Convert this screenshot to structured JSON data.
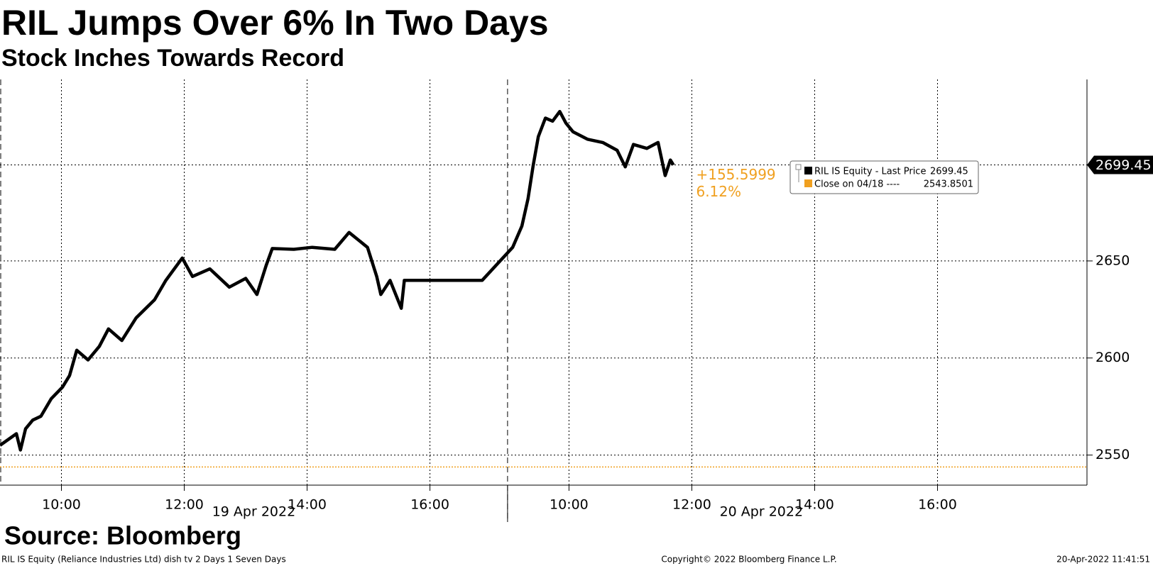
{
  "chart_data": {
    "type": "line",
    "title": "RIL Jumps Over 6% In Two Days",
    "subtitle": "Stock Inches Towards Record",
    "source": "Source: Bloomberg",
    "footer": [
      "RIL IS Equity (Reliance Industries Ltd) dish tv 2 Days 1 Seven Days",
      "Copyright© 2022 Bloomberg Finance L.P.",
      "20-Apr-2022 11:41:51"
    ],
    "x_groups": [
      "19 Apr 2022",
      "20 Apr 2022"
    ],
    "x": [
      "19 Apr 2022 09:00",
      "19 Apr 2022 09:16",
      "19 Apr 2022 09:20",
      "19 Apr 2022 09:25",
      "19 Apr 2022 09:32",
      "19 Apr 2022 09:40",
      "19 Apr 2022 09:50",
      "19 Apr 2022 10:01",
      "19 Apr 2022 10:08",
      "19 Apr 2022 10:15",
      "19 Apr 2022 10:26",
      "19 Apr 2022 10:37",
      "19 Apr 2022 10:46",
      "19 Apr 2022 10:59",
      "19 Apr 2022 11:13",
      "19 Apr 2022 11:31",
      "19 Apr 2022 11:42",
      "19 Apr 2022 11:58",
      "19 Apr 2022 12:08",
      "19 Apr 2022 12:25",
      "19 Apr 2022 12:44",
      "19 Apr 2022 13:00",
      "19 Apr 2022 13:11",
      "19 Apr 2022 13:20",
      "19 Apr 2022 13:26",
      "19 Apr 2022 13:47",
      "19 Apr 2022 14:05",
      "19 Apr 2022 14:27",
      "19 Apr 2022 14:41",
      "19 Apr 2022 14:59",
      "19 Apr 2022 15:08",
      "19 Apr 2022 15:12",
      "19 Apr 2022 15:21",
      "19 Apr 2022 15:32",
      "19 Apr 2022 15:35",
      "19 Apr 2022 16:51",
      "20 Apr 2022 09:05",
      "20 Apr 2022 09:14",
      "20 Apr 2022 09:20",
      "20 Apr 2022 09:25",
      "20 Apr 2022 09:30",
      "20 Apr 2022 09:37",
      "20 Apr 2022 09:44",
      "20 Apr 2022 09:51",
      "20 Apr 2022 09:57",
      "20 Apr 2022 10:04",
      "20 Apr 2022 10:18",
      "20 Apr 2022 10:33",
      "20 Apr 2022 10:47",
      "20 Apr 2022 10:55",
      "20 Apr 2022 11:03",
      "20 Apr 2022 11:16",
      "20 Apr 2022 11:27",
      "20 Apr 2022 11:34",
      "20 Apr 2022 11:39",
      "20 Apr 2022 11:42"
    ],
    "series": [
      {
        "name": "RIL IS Equity - Last Price",
        "color": "#000000",
        "values": [
          2555,
          2561,
          2552.6,
          2563.5,
          2568,
          2570,
          2579,
          2585,
          2591,
          2604,
          2599,
          2606,
          2615,
          2609,
          2620.7,
          2630,
          2640,
          2651.5,
          2642,
          2645.9,
          2636.5,
          2641,
          2632.7,
          2647.7,
          2656.4,
          2656,
          2657,
          2656,
          2664.7,
          2657,
          2642,
          2632.7,
          2640,
          2625.6,
          2640,
          2640,
          2657,
          2668,
          2682,
          2699,
          2714,
          2723.6,
          2722,
          2727,
          2721,
          2716.5,
          2712.7,
          2711,
          2707,
          2698.5,
          2710,
          2708,
          2711,
          2694,
          2702,
          2699.45
        ]
      }
    ],
    "reference_line": {
      "name": "Close on 04/18 ----",
      "value": 2543.8501,
      "color": "#f0a020"
    },
    "last_price": 2699.45,
    "change": {
      "value": 155.5999,
      "label": "+155.5999"
    },
    "change_pct": {
      "value": 6.12,
      "label": "6.12%"
    },
    "xlim": [
      "19 Apr 2022 09:00",
      "20 Apr 2022 18:26"
    ],
    "xticks": [
      {
        "value": "19 Apr 2022 10:00",
        "label": "10:00"
      },
      {
        "value": "19 Apr 2022 12:00",
        "label": "12:00"
      },
      {
        "value": "19 Apr 2022 14:00",
        "label": "14:00"
      },
      {
        "value": "19 Apr 2022 16:00",
        "label": "16:00"
      },
      {
        "value": "20 Apr 2022 10:00",
        "label": "10:00"
      },
      {
        "value": "20 Apr 2022 12:00",
        "label": "12:00"
      },
      {
        "value": "20 Apr 2022 14:00",
        "label": "14:00"
      },
      {
        "value": "20 Apr 2022 16:00",
        "label": "16:00"
      }
    ],
    "ylim": [
      2534.5,
      2743.5
    ],
    "yticks": [
      2550,
      2600,
      2650
    ],
    "grid": true
  }
}
